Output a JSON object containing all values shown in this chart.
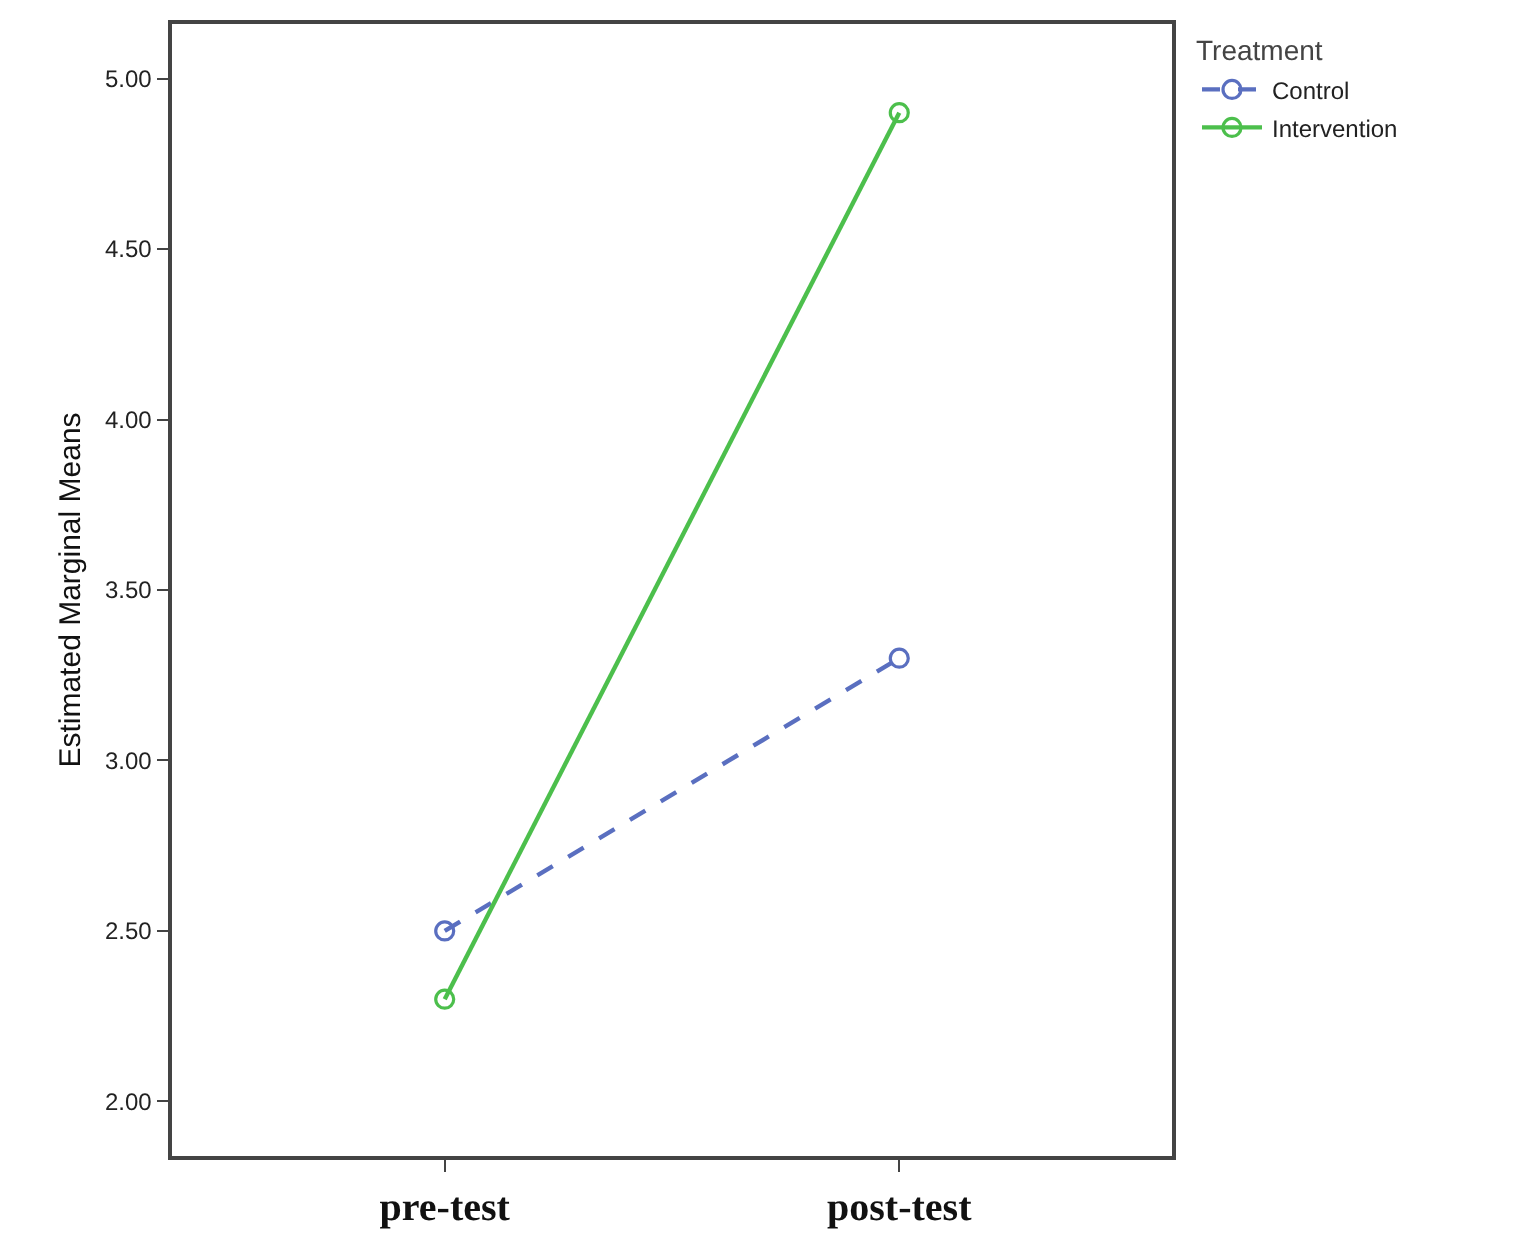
{
  "chart_data": {
    "type": "line",
    "ylabel": "Estimated Marginal Means",
    "legend_title": "Treatment",
    "categories": [
      "pre-test",
      "post-test"
    ],
    "series": [
      {
        "name": "Control",
        "color": "#5a6fc0",
        "values": [
          2.5,
          3.3
        ],
        "line_style": "dashed"
      },
      {
        "name": "Intervention",
        "color": "#4cbf4c",
        "values": [
          2.3,
          4.9
        ],
        "line_style": "solid"
      }
    ],
    "ylim": [
      1.84,
      5.16
    ],
    "yticks": [
      {
        "value": 2,
        "label": "2.00"
      },
      {
        "value": 2.5,
        "label": "2.50"
      },
      {
        "value": 3,
        "label": "3.00"
      },
      {
        "value": 3.5,
        "label": "3.50"
      },
      {
        "value": 4,
        "label": "4.00"
      },
      {
        "value": 4.5,
        "label": "4.50"
      },
      {
        "value": 5,
        "label": "5.00"
      }
    ],
    "marker": "circle",
    "legend": "top right"
  }
}
